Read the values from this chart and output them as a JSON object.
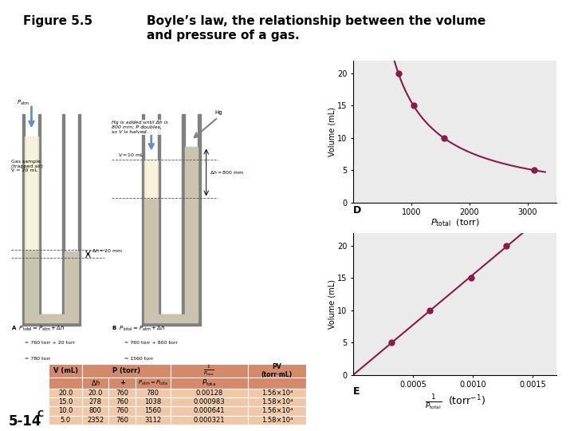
{
  "title_label": "Figure 5.5",
  "title_text": "Boyle’s law, the relationship between the volume\nand pressure of a gas.",
  "bg_color": "#ebebeb",
  "plot_color": "#8b1a4a",
  "plot_D": {
    "x": [
      780,
      1038,
      1560,
      3112
    ],
    "y": [
      20.0,
      15.0,
      10.0,
      5.0
    ],
    "xlabel": "$P_{\\mathrm{total}}$  (torr)",
    "ylabel": "Volume (mL)",
    "label": "D",
    "xlim": [
      0,
      3500
    ],
    "ylim": [
      0,
      22
    ],
    "xticks": [
      1000,
      2000,
      3000
    ],
    "yticks": [
      0,
      5,
      10,
      15,
      20
    ]
  },
  "plot_E": {
    "x": [
      0.000321,
      0.000641,
      0.000983,
      0.00128
    ],
    "y": [
      5.0,
      10.0,
      15.0,
      20.0
    ],
    "ylabel": "Volume (mL)",
    "label": "E",
    "xlim": [
      0,
      0.0017
    ],
    "ylim": [
      0,
      22
    ],
    "xticks": [
      0.0005,
      0.001,
      0.0015
    ],
    "yticks": [
      0,
      5,
      10,
      15,
      20
    ]
  },
  "table_header_color": "#d4896a",
  "table_row_color": "#f0c8a8",
  "table_border_color": "#ffffff",
  "slide_label": "5-14",
  "green_box_color": "#1a6e20",
  "footer_label": "C",
  "white": "#ffffff",
  "black": "#000000",
  "gray_tube": "#c0c0c0",
  "dark_gray": "#808080",
  "mercury_color": "#c8c4b0",
  "gas_color": "#ffffff",
  "blue_arrow": "#6090d0"
}
